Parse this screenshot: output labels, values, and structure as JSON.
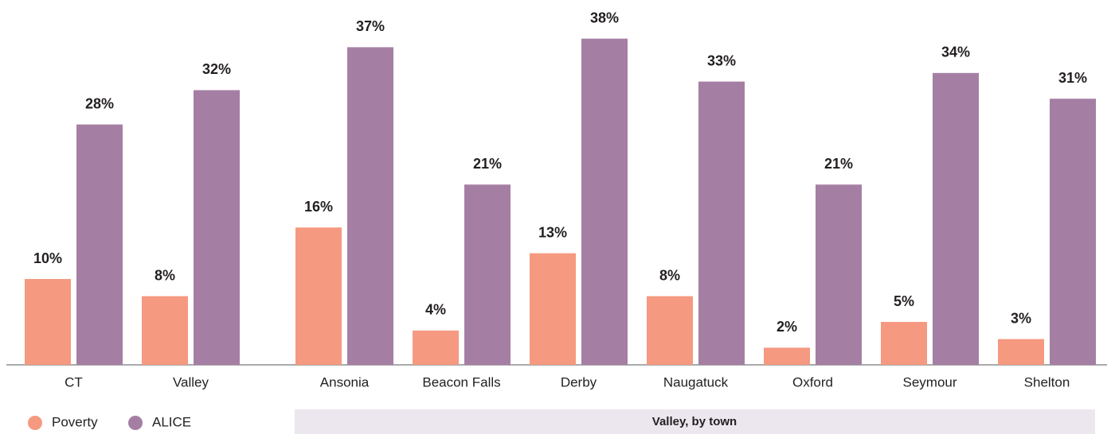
{
  "chart_data": {
    "type": "bar",
    "categories": [
      "CT",
      "Valley",
      "Ansonia",
      "Beacon Falls",
      "Derby",
      "Naugatuck",
      "Oxford",
      "Seymour",
      "Shelton"
    ],
    "series": [
      {
        "name": "Poverty",
        "color": "#f59980",
        "values": [
          10,
          8,
          16,
          4,
          13,
          8,
          2,
          5,
          3
        ],
        "value_labels": [
          "10%",
          "8%",
          "16%",
          "4%",
          "13%",
          "8%",
          "2%",
          "5%",
          "3%"
        ]
      },
      {
        "name": "ALICE",
        "color": "#a57fa3",
        "values": [
          28,
          32,
          37,
          21,
          38,
          33,
          21,
          34,
          31
        ],
        "value_labels": [
          "28%",
          "32%",
          "37%",
          "21%",
          "38%",
          "33%",
          "21%",
          "34%",
          "31%"
        ]
      }
    ],
    "annotations": [
      "Valley, by town"
    ],
    "legend": "bottom-left"
  }
}
